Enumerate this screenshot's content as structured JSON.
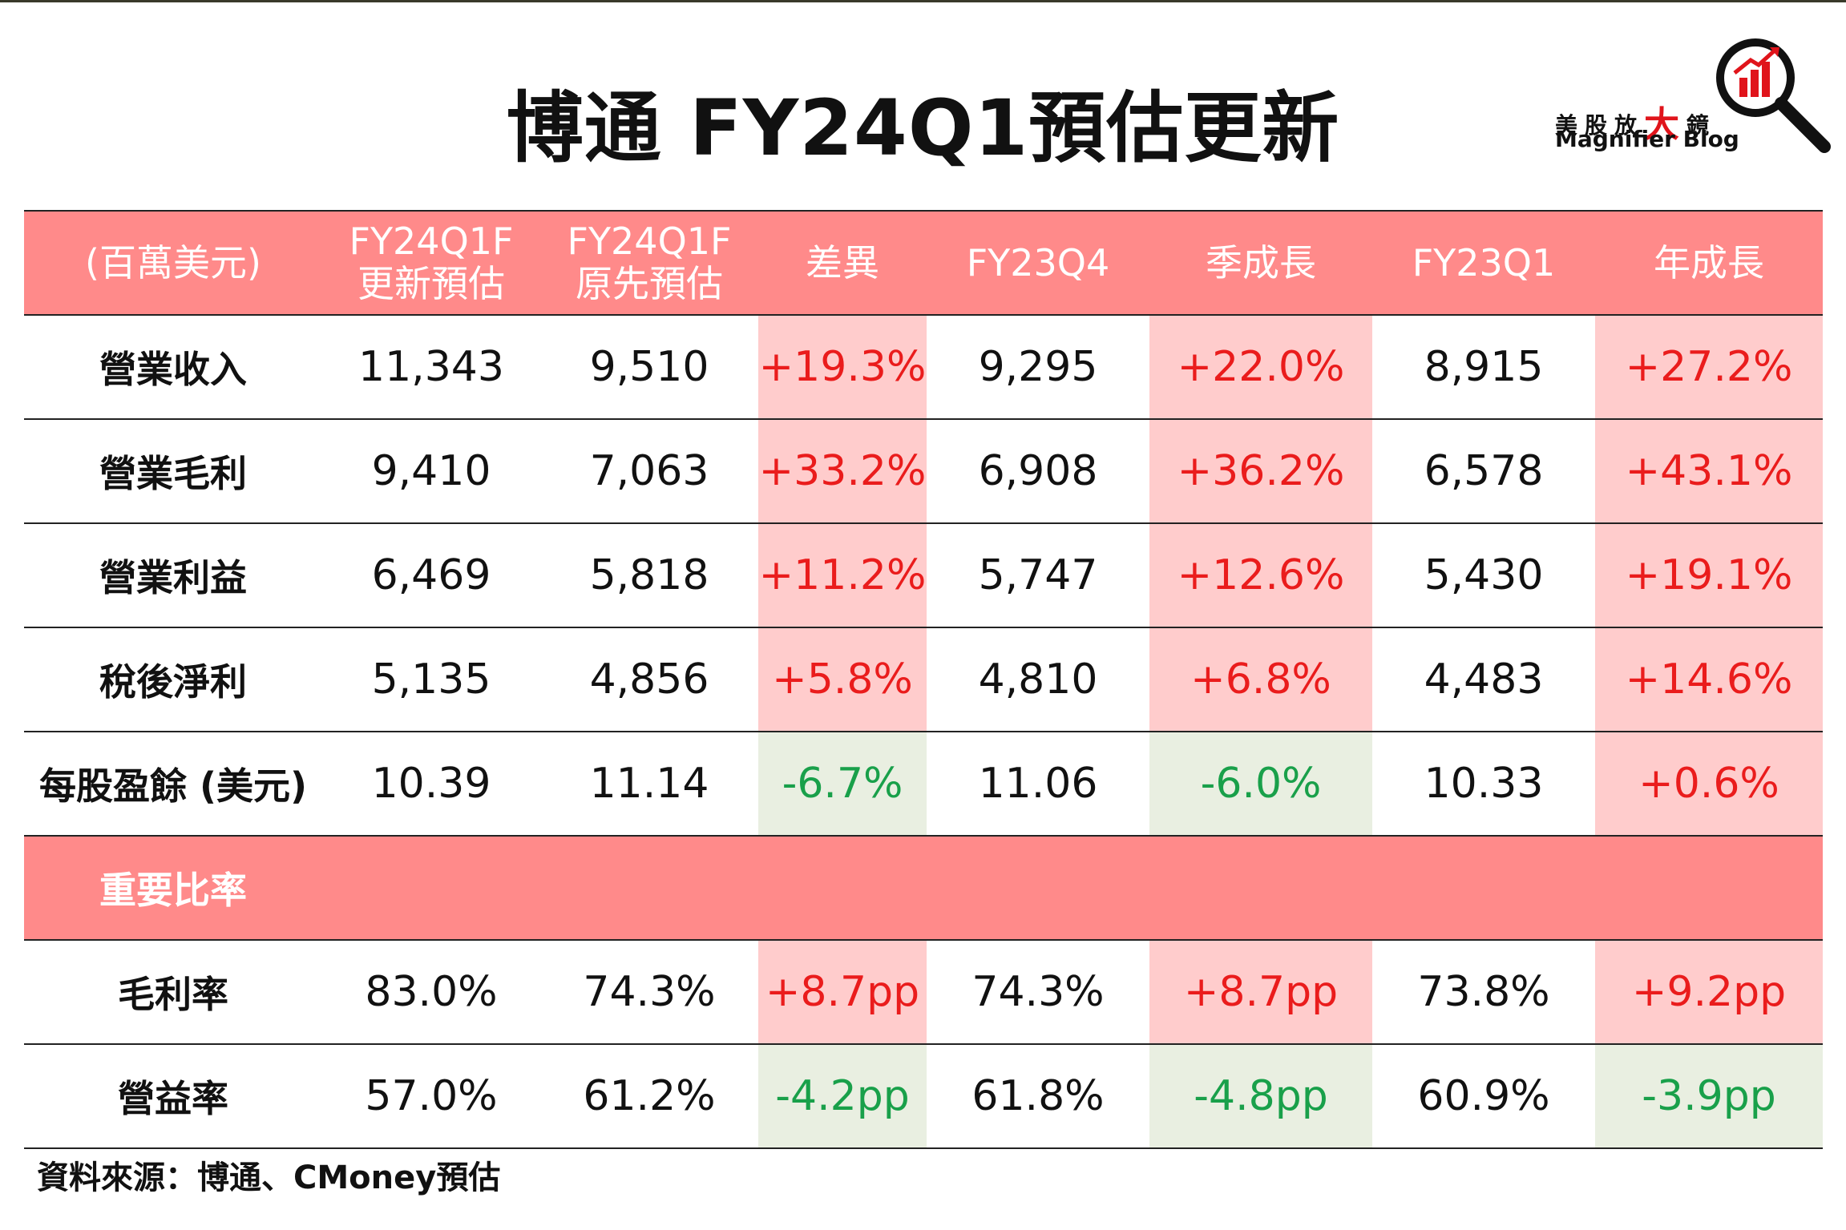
{
  "title": "博通 FY24Q1預估更新",
  "logo": {
    "cn_prefix": "美股放",
    "cn_big": "大",
    "cn_suffix": "鏡",
    "en": "Magnifier Blog",
    "colors": {
      "red": "#e0141b",
      "black": "#111111"
    }
  },
  "table": {
    "headers": [
      {
        "line1": "(百萬美元)",
        "line2": ""
      },
      {
        "line1": "FY24Q1F",
        "line2": "更新預估"
      },
      {
        "line1": "FY24Q1F",
        "line2": "原先預估"
      },
      {
        "line1": "差異",
        "line2": ""
      },
      {
        "line1": "FY23Q4",
        "line2": ""
      },
      {
        "line1": "季成長",
        "line2": ""
      },
      {
        "line1": "FY23Q1",
        "line2": ""
      },
      {
        "line1": "年成長",
        "line2": ""
      }
    ],
    "rows": [
      {
        "label": "營業收入",
        "cells": [
          "11,343",
          "9,510",
          "+19.3%",
          "9,295",
          "+22.0%",
          "8,915",
          "+27.2%"
        ]
      },
      {
        "label": "營業毛利",
        "cells": [
          "9,410",
          "7,063",
          "+33.2%",
          "6,908",
          "+36.2%",
          "6,578",
          "+43.1%"
        ]
      },
      {
        "label": "營業利益",
        "cells": [
          "6,469",
          "5,818",
          "+11.2%",
          "5,747",
          "+12.6%",
          "5,430",
          "+19.1%"
        ]
      },
      {
        "label": "稅後淨利",
        "cells": [
          "5,135",
          "4,856",
          "+5.8%",
          "4,810",
          "+6.8%",
          "4,483",
          "+14.6%"
        ]
      },
      {
        "label": "每股盈餘 (美元)",
        "cells": [
          "10.39",
          "11.14",
          "-6.7%",
          "11.06",
          "-6.0%",
          "10.33",
          "+0.6%"
        ]
      }
    ],
    "section_label": "重要比率",
    "ratio_rows": [
      {
        "label": "毛利率",
        "cells": [
          "83.0%",
          "74.3%",
          "+8.7pp",
          "74.3%",
          "+8.7pp",
          "73.8%",
          "+9.2pp"
        ]
      },
      {
        "label": "營益率",
        "cells": [
          "57.0%",
          "61.2%",
          "-4.2pp",
          "61.8%",
          "-4.8pp",
          "60.9%",
          "-3.9pp"
        ]
      }
    ],
    "colors": {
      "header_bg": "#ff8a8a",
      "positive_bg": "#ffcccc",
      "positive_text": "#ea1c1c",
      "negative_bg": "#e9efe1",
      "negative_text": "#19a04a"
    }
  },
  "source": "資料來源：博通、CMoney預估"
}
